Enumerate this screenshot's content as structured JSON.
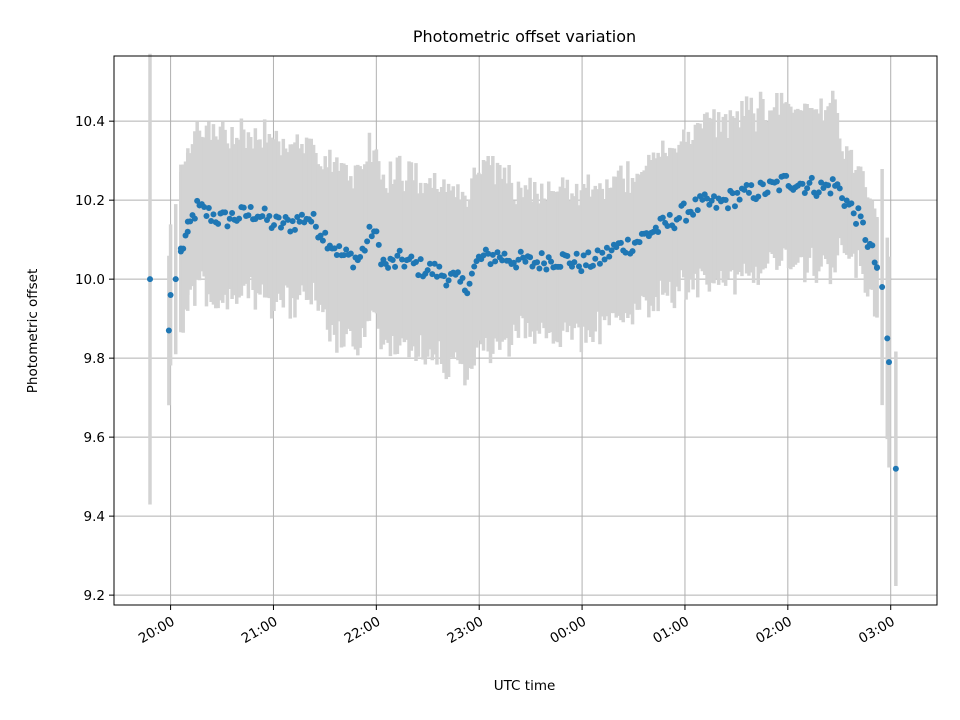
{
  "chart_data": {
    "type": "scatter",
    "title": "Photometric offset variation",
    "xlabel": "UTC time",
    "ylabel": "Photometric offset",
    "xlim_minutes": [
      -33,
      447
    ],
    "ylim": [
      9.175,
      10.565
    ],
    "grid": true,
    "x_ticks": [
      {
        "minutes": 0,
        "label": "20:00"
      },
      {
        "minutes": 60,
        "label": "21:00"
      },
      {
        "minutes": 120,
        "label": "22:00"
      },
      {
        "minutes": 180,
        "label": "23:00"
      },
      {
        "minutes": 240,
        "label": "00:00"
      },
      {
        "minutes": 300,
        "label": "01:00"
      },
      {
        "minutes": 360,
        "label": "02:00"
      },
      {
        "minutes": 420,
        "label": "03:00"
      }
    ],
    "y_ticks": [
      {
        "value": 9.2,
        "label": "9.2"
      },
      {
        "value": 9.4,
        "label": "9.4"
      },
      {
        "value": 9.6,
        "label": "9.6"
      },
      {
        "value": 9.8,
        "label": "9.8"
      },
      {
        "value": 10.0,
        "label": "10.0"
      },
      {
        "value": 10.2,
        "label": "10.2"
      },
      {
        "value": 10.4,
        "label": "10.4"
      }
    ],
    "x_ref_time": "20:00 UTC",
    "x_unit": "minutes after 20:00 UTC",
    "anchor_points": [
      [
        -12,
        10.0
      ],
      [
        -1,
        9.87
      ],
      [
        0,
        9.96
      ],
      [
        3,
        10.0
      ],
      [
        6,
        10.07
      ],
      [
        10,
        10.12
      ],
      [
        15,
        10.18
      ],
      [
        20,
        10.17
      ],
      [
        30,
        10.15
      ],
      [
        40,
        10.16
      ],
      [
        50,
        10.17
      ],
      [
        60,
        10.14
      ],
      [
        70,
        10.14
      ],
      [
        80,
        10.16
      ],
      [
        90,
        10.11
      ],
      [
        100,
        10.06
      ],
      [
        110,
        10.05
      ],
      [
        118,
        10.13
      ],
      [
        125,
        10.03
      ],
      [
        135,
        10.05
      ],
      [
        145,
        10.03
      ],
      [
        155,
        10.02
      ],
      [
        165,
        10.0
      ],
      [
        172,
        9.98
      ],
      [
        180,
        10.05
      ],
      [
        190,
        10.06
      ],
      [
        200,
        10.05
      ],
      [
        210,
        10.04
      ],
      [
        220,
        10.05
      ],
      [
        230,
        10.05
      ],
      [
        240,
        10.04
      ],
      [
        250,
        10.05
      ],
      [
        260,
        10.08
      ],
      [
        270,
        10.09
      ],
      [
        280,
        10.12
      ],
      [
        290,
        10.14
      ],
      [
        300,
        10.17
      ],
      [
        310,
        10.19
      ],
      [
        320,
        10.19
      ],
      [
        330,
        10.21
      ],
      [
        340,
        10.22
      ],
      [
        350,
        10.23
      ],
      [
        360,
        10.25
      ],
      [
        370,
        10.24
      ],
      [
        380,
        10.23
      ],
      [
        388,
        10.24
      ],
      [
        395,
        10.19
      ],
      [
        402,
        10.15
      ],
      [
        408,
        10.08
      ],
      [
        412,
        10.03
      ],
      [
        415,
        9.98
      ],
      [
        418,
        9.85
      ],
      [
        419,
        9.79
      ],
      [
        423,
        9.52
      ]
    ],
    "point_count": 300,
    "noise_amplitude": 0.025,
    "point_color": "#1f77b4",
    "errorbar_color": "#d3d3d3"
  }
}
